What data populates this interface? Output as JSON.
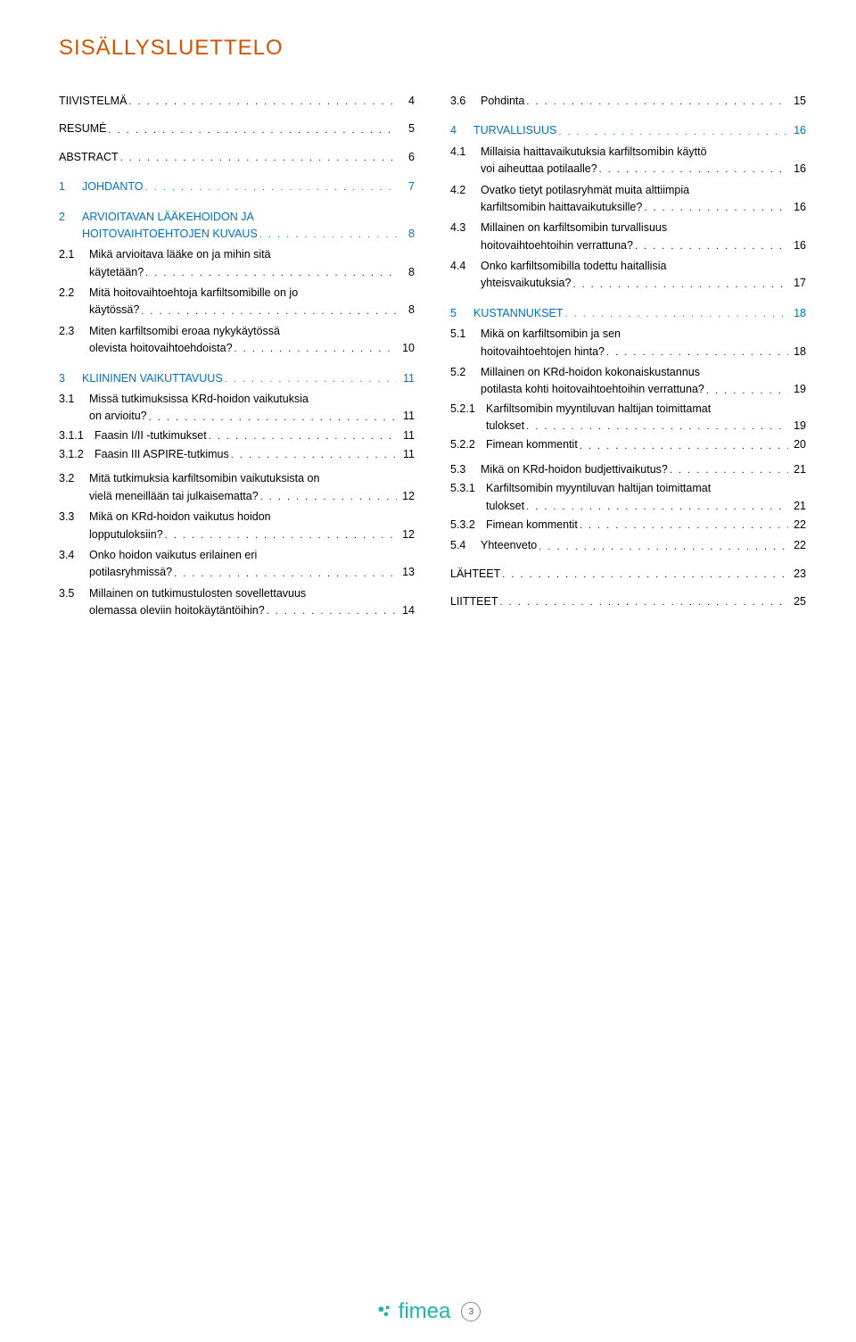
{
  "title": "SISÄLLYSLUETTELO",
  "colors": {
    "title": "#d35400",
    "level1": "#0070c0",
    "text": "#000000",
    "logo": "#1fb5ad"
  },
  "footer": {
    "logo_text": "fimea",
    "page_number": "3"
  },
  "toc_left": [
    {
      "level": 0,
      "num": "",
      "text": "TIIVISTELMÄ",
      "page": "4"
    },
    {
      "level": 0,
      "num": "",
      "text": "RESUMÉ",
      "page": "5"
    },
    {
      "level": 0,
      "num": "",
      "text": "ABSTRACT",
      "page": "6"
    },
    {
      "level": 1,
      "num": "1",
      "text": "JOHDANTO",
      "page": "7"
    },
    {
      "level": 1,
      "num": "2",
      "text": "ARVIOITAVAN LÄÄKEHOIDON JA",
      "text2": "HOITOVAIHTOEHTOJEN KUVAUS",
      "page": "8"
    },
    {
      "level": 2,
      "num": "2.1",
      "text": "Mikä arvioitava lääke on ja mihin sitä",
      "text2": "käytetään?",
      "page": "8"
    },
    {
      "level": 2,
      "num": "2.2",
      "text": "Mitä hoitovaihtoehtoja karfiltsomibille on jo",
      "text2": "käytössä?",
      "page": "8"
    },
    {
      "level": 2,
      "num": "2.3",
      "text": "Miten karfiltsomibi eroaa nykykäytössä",
      "text2": "olevista hoitovaihtoehdoista?",
      "page": "10"
    },
    {
      "level": 1,
      "num": "3",
      "text": "KLIININEN VAIKUTTAVUUS",
      "page": "11"
    },
    {
      "level": 2,
      "num": "3.1",
      "text": "Missä tutkimuksissa KRd-hoidon vaikutuksia",
      "text2": "on arvioitu?",
      "page": "11"
    },
    {
      "level": 3,
      "num": "3.1.1",
      "text": "Faasin I/II -tutkimukset",
      "page": "11"
    },
    {
      "level": 3,
      "num": "3.1.2",
      "text": "Faasin III ASPIRE-tutkimus",
      "page": "11"
    },
    {
      "level": 2,
      "num": "3.2",
      "text": "Mitä tutkimuksia karfiltsomibin vaikutuksista on",
      "text2": "vielä meneillään tai julkaisematta?",
      "page": "12"
    },
    {
      "level": 2,
      "num": "3.3",
      "text": "Mikä on KRd-hoidon vaikutus hoidon",
      "text2": "lopputuloksiin?",
      "page": "12"
    },
    {
      "level": 2,
      "num": "3.4",
      "text": "Onko hoidon vaikutus erilainen eri",
      "text2": "potilasryhmissä?",
      "page": "13"
    },
    {
      "level": 2,
      "num": "3.5",
      "text": "Millainen on tutkimustulosten sovellettavuus",
      "text2": "olemassa oleviin hoitokäytäntöihin?",
      "page": "14"
    }
  ],
  "toc_right": [
    {
      "level": 2,
      "num": "3.6",
      "text": "Pohdinta",
      "page": "15"
    },
    {
      "level": 1,
      "num": "4",
      "text": "TURVALLISUUS",
      "page": "16"
    },
    {
      "level": 2,
      "num": "4.1",
      "text": "Millaisia haittavaikutuksia karfiltsomibin käyttö",
      "text2": "voi aiheuttaa potilaalle?",
      "page": "16"
    },
    {
      "level": 2,
      "num": "4.2",
      "text": "Ovatko tietyt potilasryhmät muita alttiimpia",
      "text2": "karfiltsomibin haittavaikutuksille?",
      "page": "16"
    },
    {
      "level": 2,
      "num": "4.3",
      "text": "Millainen on karfiltsomibin turvallisuus",
      "text2": "hoitovaihtoehtoihin verrattuna?",
      "page": "16"
    },
    {
      "level": 2,
      "num": "4.4",
      "text": "Onko karfiltsomibilla todettu haitallisia",
      "text2": "yhteisvaikutuksia?",
      "page": "17"
    },
    {
      "level": 1,
      "num": "5",
      "text": "KUSTANNUKSET",
      "page": "18"
    },
    {
      "level": 2,
      "num": "5.1",
      "text": "Mikä on karfiltsomibin ja sen",
      "text2": "hoitovaihtoehtojen hinta?",
      "page": "18"
    },
    {
      "level": 2,
      "num": "5.2",
      "text": "Millainen on KRd-hoidon kokonaiskustannus",
      "text2": "potilasta kohti hoitovaihtoehtoihin verrattuna?",
      "page": "19"
    },
    {
      "level": 3,
      "num": "5.2.1",
      "text": "Karfiltsomibin myyntiluvan haltijan toimittamat",
      "text2": "tulokset",
      "page": "19"
    },
    {
      "level": 3,
      "num": "5.2.2",
      "text": "Fimean kommentit",
      "page": "20"
    },
    {
      "level": 2,
      "num": "5.3",
      "text": "Mikä on KRd-hoidon budjettivaikutus?",
      "page": "21"
    },
    {
      "level": 3,
      "num": "5.3.1",
      "text": "Karfiltsomibin myyntiluvan haltijan toimittamat",
      "text2": "tulokset",
      "page": "21"
    },
    {
      "level": 3,
      "num": "5.3.2",
      "text": "Fimean kommentit",
      "page": "22"
    },
    {
      "level": 2,
      "num": "5.4",
      "text": "Yhteenveto",
      "page": "22"
    },
    {
      "level": 0,
      "num": "",
      "text": "LÄHTEET",
      "page": "23"
    },
    {
      "level": 0,
      "num": "",
      "text": "LIITTEET",
      "page": "25"
    }
  ]
}
